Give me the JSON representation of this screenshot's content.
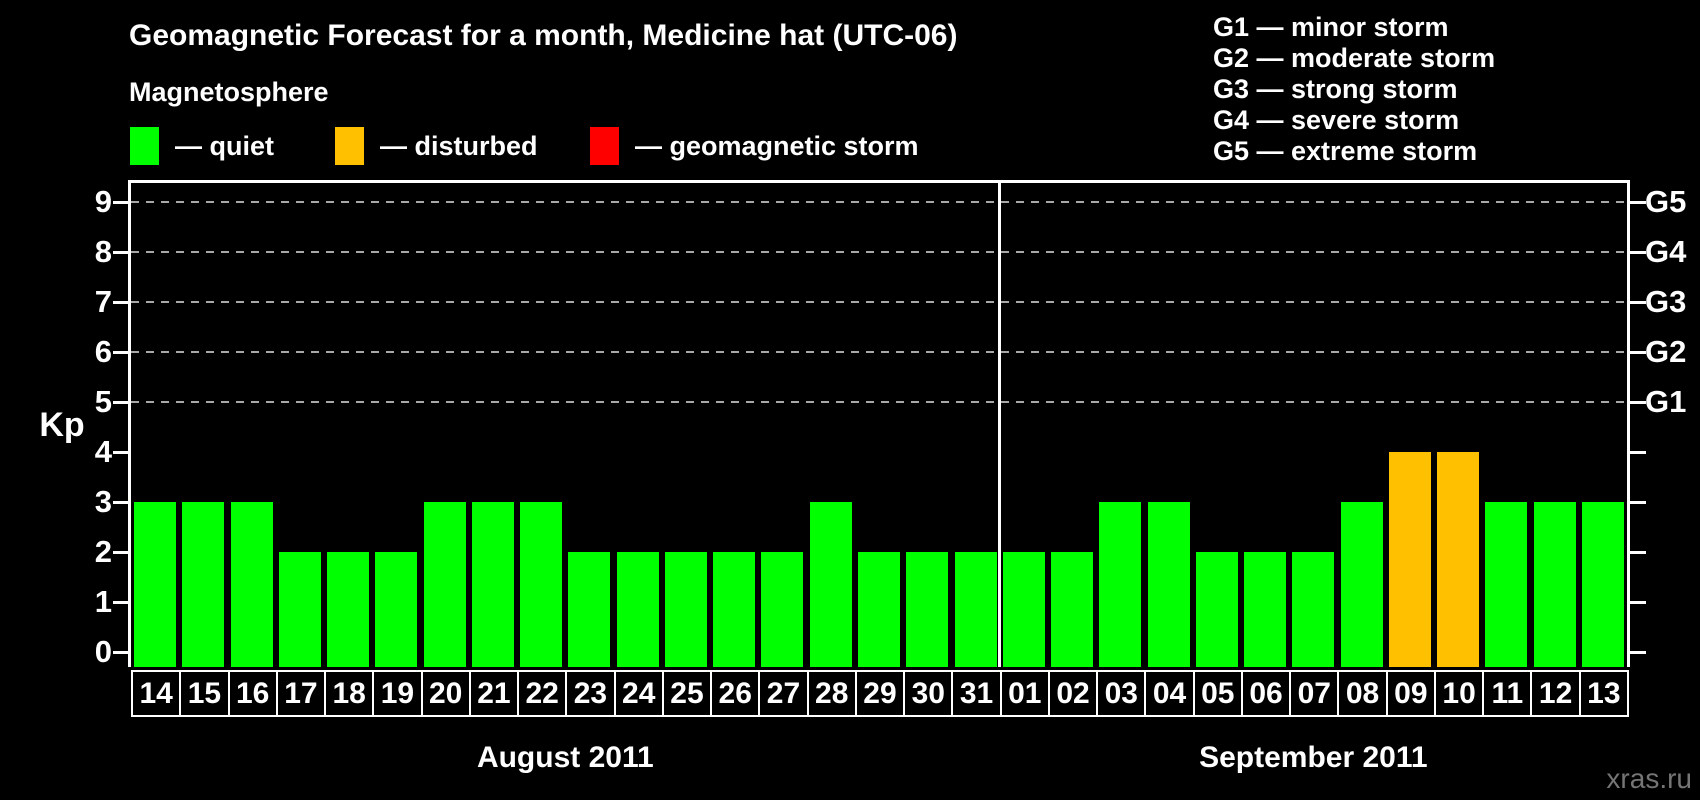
{
  "title": "Geomagnetic Forecast for a month, Medicine hat (UTC-06)",
  "legend": {
    "heading": "Magnetosphere",
    "items": [
      {
        "name": "quiet",
        "label": "— quiet",
        "color": "#00ff00"
      },
      {
        "name": "disturbed",
        "label": "— disturbed",
        "color": "#ffc000"
      },
      {
        "name": "storm",
        "label": "— geomagnetic storm",
        "color": "#ff0000"
      }
    ]
  },
  "storm_scale": [
    "G1 — minor storm",
    "G2 — moderate storm",
    "G3 — strong storm",
    "G4 — severe storm",
    "G5 — extreme storm"
  ],
  "y_axis_label": "Kp",
  "watermark": "xras.ru",
  "chart_data": {
    "type": "bar",
    "title": "Geomagnetic Forecast for a month, Medicine hat (UTC-06)",
    "ylabel": "Kp",
    "ylim": [
      0,
      9.6
    ],
    "yticks": [
      0,
      1,
      2,
      3,
      4,
      5,
      6,
      7,
      8,
      9
    ],
    "grid": "dashed horizontal lines at Kp 5-9 only",
    "legend_position": "top-left",
    "grid_levels": [
      {
        "kp": 5,
        "label": "G1"
      },
      {
        "kp": 6,
        "label": "G2"
      },
      {
        "kp": 7,
        "label": "G3"
      },
      {
        "kp": 8,
        "label": "G4"
      },
      {
        "kp": 9,
        "label": "G5"
      }
    ],
    "status_colors": {
      "quiet": "#00ff00",
      "disturbed": "#ffc000",
      "storm": "#ff0000"
    },
    "groups": [
      {
        "month": "August 2011",
        "days": [
          "14",
          "15",
          "16",
          "17",
          "18",
          "19",
          "20",
          "21",
          "22",
          "23",
          "24",
          "25",
          "26",
          "27",
          "28",
          "29",
          "30",
          "31"
        ],
        "values": [
          3,
          3,
          3,
          2,
          2,
          2,
          3,
          3,
          3,
          2,
          2,
          2,
          2,
          2,
          3,
          2,
          2,
          2
        ],
        "statuses": [
          "quiet",
          "quiet",
          "quiet",
          "quiet",
          "quiet",
          "quiet",
          "quiet",
          "quiet",
          "quiet",
          "quiet",
          "quiet",
          "quiet",
          "quiet",
          "quiet",
          "quiet",
          "quiet",
          "quiet",
          "quiet"
        ]
      },
      {
        "month": "September 2011",
        "days": [
          "01",
          "02",
          "03",
          "04",
          "05",
          "06",
          "07",
          "08",
          "09",
          "10",
          "11",
          "12",
          "13"
        ],
        "values": [
          2,
          2,
          3,
          3,
          2,
          2,
          2,
          3,
          4,
          4,
          3,
          3,
          3
        ],
        "statuses": [
          "quiet",
          "quiet",
          "quiet",
          "quiet",
          "quiet",
          "quiet",
          "quiet",
          "quiet",
          "disturbed",
          "disturbed",
          "quiet",
          "quiet",
          "quiet"
        ]
      }
    ]
  }
}
